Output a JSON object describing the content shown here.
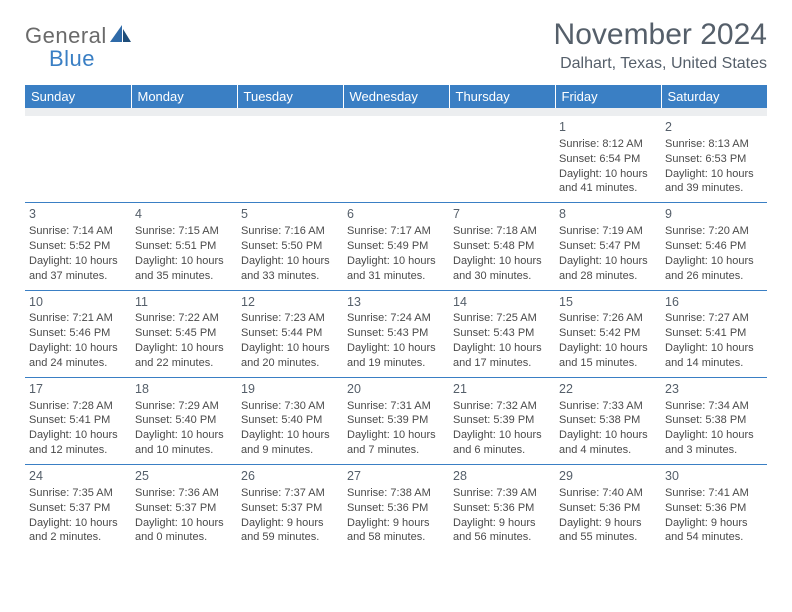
{
  "logo": {
    "text1": "General",
    "text2": "Blue"
  },
  "title": "November 2024",
  "location": "Dalhart, Texas, United States",
  "colors": {
    "header_bg": "#3a7fc4",
    "header_fg": "#ffffff",
    "spacer_bg": "#eceef0",
    "rule": "#3a7fc4",
    "text": "#4a4a4a",
    "title_color": "#555f6a",
    "logo_gray": "#6a6a6a",
    "logo_blue": "#3a7fc4",
    "page_bg": "#ffffff"
  },
  "typography": {
    "title_fontsize": 30,
    "location_fontsize": 16,
    "header_fontsize": 13,
    "daynum_fontsize": 12.5,
    "cell_fontsize": 11,
    "logo_fontsize": 22
  },
  "columns": [
    "Sunday",
    "Monday",
    "Tuesday",
    "Wednesday",
    "Thursday",
    "Friday",
    "Saturday"
  ],
  "weeks": [
    [
      null,
      null,
      null,
      null,
      null,
      {
        "n": "1",
        "sr": "8:12 AM",
        "ss": "6:54 PM",
        "dl": "10 hours and 41 minutes."
      },
      {
        "n": "2",
        "sr": "8:13 AM",
        "ss": "6:53 PM",
        "dl": "10 hours and 39 minutes."
      }
    ],
    [
      {
        "n": "3",
        "sr": "7:14 AM",
        "ss": "5:52 PM",
        "dl": "10 hours and 37 minutes."
      },
      {
        "n": "4",
        "sr": "7:15 AM",
        "ss": "5:51 PM",
        "dl": "10 hours and 35 minutes."
      },
      {
        "n": "5",
        "sr": "7:16 AM",
        "ss": "5:50 PM",
        "dl": "10 hours and 33 minutes."
      },
      {
        "n": "6",
        "sr": "7:17 AM",
        "ss": "5:49 PM",
        "dl": "10 hours and 31 minutes."
      },
      {
        "n": "7",
        "sr": "7:18 AM",
        "ss": "5:48 PM",
        "dl": "10 hours and 30 minutes."
      },
      {
        "n": "8",
        "sr": "7:19 AM",
        "ss": "5:47 PM",
        "dl": "10 hours and 28 minutes."
      },
      {
        "n": "9",
        "sr": "7:20 AM",
        "ss": "5:46 PM",
        "dl": "10 hours and 26 minutes."
      }
    ],
    [
      {
        "n": "10",
        "sr": "7:21 AM",
        "ss": "5:46 PM",
        "dl": "10 hours and 24 minutes."
      },
      {
        "n": "11",
        "sr": "7:22 AM",
        "ss": "5:45 PM",
        "dl": "10 hours and 22 minutes."
      },
      {
        "n": "12",
        "sr": "7:23 AM",
        "ss": "5:44 PM",
        "dl": "10 hours and 20 minutes."
      },
      {
        "n": "13",
        "sr": "7:24 AM",
        "ss": "5:43 PM",
        "dl": "10 hours and 19 minutes."
      },
      {
        "n": "14",
        "sr": "7:25 AM",
        "ss": "5:43 PM",
        "dl": "10 hours and 17 minutes."
      },
      {
        "n": "15",
        "sr": "7:26 AM",
        "ss": "5:42 PM",
        "dl": "10 hours and 15 minutes."
      },
      {
        "n": "16",
        "sr": "7:27 AM",
        "ss": "5:41 PM",
        "dl": "10 hours and 14 minutes."
      }
    ],
    [
      {
        "n": "17",
        "sr": "7:28 AM",
        "ss": "5:41 PM",
        "dl": "10 hours and 12 minutes."
      },
      {
        "n": "18",
        "sr": "7:29 AM",
        "ss": "5:40 PM",
        "dl": "10 hours and 10 minutes."
      },
      {
        "n": "19",
        "sr": "7:30 AM",
        "ss": "5:40 PM",
        "dl": "10 hours and 9 minutes."
      },
      {
        "n": "20",
        "sr": "7:31 AM",
        "ss": "5:39 PM",
        "dl": "10 hours and 7 minutes."
      },
      {
        "n": "21",
        "sr": "7:32 AM",
        "ss": "5:39 PM",
        "dl": "10 hours and 6 minutes."
      },
      {
        "n": "22",
        "sr": "7:33 AM",
        "ss": "5:38 PM",
        "dl": "10 hours and 4 minutes."
      },
      {
        "n": "23",
        "sr": "7:34 AM",
        "ss": "5:38 PM",
        "dl": "10 hours and 3 minutes."
      }
    ],
    [
      {
        "n": "24",
        "sr": "7:35 AM",
        "ss": "5:37 PM",
        "dl": "10 hours and 2 minutes."
      },
      {
        "n": "25",
        "sr": "7:36 AM",
        "ss": "5:37 PM",
        "dl": "10 hours and 0 minutes."
      },
      {
        "n": "26",
        "sr": "7:37 AM",
        "ss": "5:37 PM",
        "dl": "9 hours and 59 minutes."
      },
      {
        "n": "27",
        "sr": "7:38 AM",
        "ss": "5:36 PM",
        "dl": "9 hours and 58 minutes."
      },
      {
        "n": "28",
        "sr": "7:39 AM",
        "ss": "5:36 PM",
        "dl": "9 hours and 56 minutes."
      },
      {
        "n": "29",
        "sr": "7:40 AM",
        "ss": "5:36 PM",
        "dl": "9 hours and 55 minutes."
      },
      {
        "n": "30",
        "sr": "7:41 AM",
        "ss": "5:36 PM",
        "dl": "9 hours and 54 minutes."
      }
    ]
  ],
  "labels": {
    "sunrise": "Sunrise:",
    "sunset": "Sunset:",
    "daylight": "Daylight:"
  }
}
